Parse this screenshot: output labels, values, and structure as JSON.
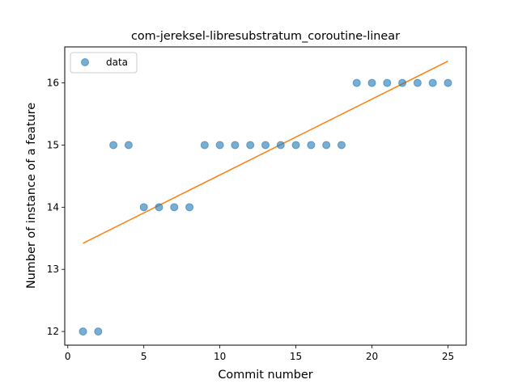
{
  "chart_data": {
    "type": "scatter",
    "title": "com-jereksel-libresubstratum_coroutine-linear",
    "xlabel": "Commit number",
    "ylabel": "Number of instance of a feature",
    "xlim": [
      -0.2,
      26.2
    ],
    "ylim": [
      11.78,
      16.58
    ],
    "xticks": [
      0,
      5,
      10,
      15,
      20,
      25
    ],
    "yticks": [
      12,
      13,
      14,
      15,
      16
    ],
    "legend": {
      "location": "upper-left",
      "entries": [
        "data"
      ]
    },
    "series": [
      {
        "name": "data",
        "kind": "scatter",
        "color": "#1f77b4",
        "x": [
          1,
          2,
          3,
          4,
          5,
          6,
          7,
          8,
          9,
          10,
          11,
          12,
          13,
          14,
          15,
          16,
          17,
          18,
          19,
          20,
          21,
          22,
          23,
          24,
          25
        ],
        "y": [
          12,
          12,
          15,
          15,
          14,
          14,
          14,
          14,
          15,
          15,
          15,
          15,
          15,
          15,
          15,
          15,
          15,
          15,
          16,
          16,
          16,
          16,
          16,
          16,
          16
        ]
      },
      {
        "kind": "line",
        "color": "#ff7f0e",
        "x": [
          1,
          25
        ],
        "y": [
          13.42,
          16.35
        ]
      }
    ]
  }
}
